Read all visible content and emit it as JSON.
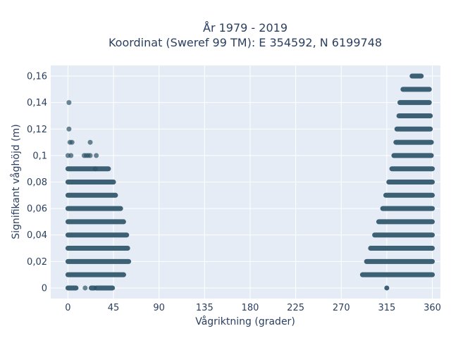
{
  "chart_data": {
    "type": "scatter",
    "title_lines": [
      "År 1979 - 2019",
      "Koordinat (Sweref 99 TM): E 354592, N 6199748"
    ],
    "xlabel": "Vågriktning (grader)",
    "ylabel": "Signifikant våghöjd (m)",
    "xlim": [
      -17,
      368
    ],
    "ylim": [
      -0.008,
      0.168
    ],
    "x_ticks": [
      0,
      45,
      90,
      135,
      180,
      225,
      270,
      315,
      360
    ],
    "x_tick_labels": [
      "0",
      "45",
      "90",
      "135",
      "180",
      "225",
      "270",
      "315",
      "360"
    ],
    "y_ticks": [
      0,
      0.02,
      0.04,
      0.06,
      0.08,
      0.1,
      0.12,
      0.14,
      0.16
    ],
    "y_tick_labels": [
      "0",
      "0,02",
      "0,04",
      "0,06",
      "0,08",
      "0,1",
      "0,12",
      "0,14",
      "0,16"
    ],
    "grid": true,
    "colors": {
      "plot_background": "#e5ecf6",
      "grid": "#ffffff",
      "marker": "#2e5468",
      "text": "#2a3f5f"
    },
    "marker_opacity": 0.7,
    "bands": [
      {
        "y": 0.0,
        "x_ranges": [
          [
            0,
            8
          ],
          [
            23,
            26
          ],
          [
            28,
            44
          ]
        ]
      },
      {
        "y": 0.01,
        "x_ranges": [
          [
            0,
            55
          ]
        ]
      },
      {
        "y": 0.02,
        "x_ranges": [
          [
            0,
            60
          ]
        ]
      },
      {
        "y": 0.03,
        "x_ranges": [
          [
            0,
            59
          ]
        ]
      },
      {
        "y": 0.04,
        "x_ranges": [
          [
            0,
            58
          ]
        ]
      },
      {
        "y": 0.05,
        "x_ranges": [
          [
            0,
            55
          ]
        ]
      },
      {
        "y": 0.06,
        "x_ranges": [
          [
            0,
            52
          ]
        ]
      },
      {
        "y": 0.07,
        "x_ranges": [
          [
            0,
            47
          ]
        ]
      },
      {
        "y": 0.08,
        "x_ranges": [
          [
            0,
            45
          ]
        ]
      },
      {
        "y": 0.09,
        "x_ranges": [
          [
            0,
            40
          ]
        ]
      },
      {
        "y": 0.0,
        "x_ranges": [
          [
            315,
            315
          ]
        ]
      },
      {
        "y": 0.01,
        "x_ranges": [
          [
            291,
            360
          ]
        ]
      },
      {
        "y": 0.02,
        "x_ranges": [
          [
            295,
            360
          ]
        ]
      },
      {
        "y": 0.03,
        "x_ranges": [
          [
            299,
            360
          ]
        ]
      },
      {
        "y": 0.04,
        "x_ranges": [
          [
            303,
            360
          ]
        ]
      },
      {
        "y": 0.05,
        "x_ranges": [
          [
            307,
            360
          ]
        ]
      },
      {
        "y": 0.06,
        "x_ranges": [
          [
            311,
            360
          ]
        ]
      },
      {
        "y": 0.07,
        "x_ranges": [
          [
            314,
            360
          ]
        ]
      },
      {
        "y": 0.08,
        "x_ranges": [
          [
            317,
            360
          ]
        ]
      },
      {
        "y": 0.09,
        "x_ranges": [
          [
            320,
            360
          ]
        ]
      },
      {
        "y": 0.1,
        "x_ranges": [
          [
            322,
            359
          ]
        ]
      },
      {
        "y": 0.11,
        "x_ranges": [
          [
            324,
            359
          ]
        ]
      },
      {
        "y": 0.12,
        "x_ranges": [
          [
            325,
            358
          ]
        ]
      },
      {
        "y": 0.13,
        "x_ranges": [
          [
            327,
            358
          ]
        ]
      },
      {
        "y": 0.14,
        "x_ranges": [
          [
            328,
            357
          ]
        ]
      },
      {
        "y": 0.15,
        "x_ranges": [
          [
            331,
            357
          ]
        ]
      },
      {
        "y": 0.16,
        "x_ranges": [
          [
            340,
            349
          ]
        ]
      }
    ],
    "points": [
      {
        "x": 1,
        "y": 0.14
      },
      {
        "x": 1,
        "y": 0.12
      },
      {
        "x": 2,
        "y": 0.11
      },
      {
        "x": 4,
        "y": 0.11
      },
      {
        "x": 22,
        "y": 0.11
      },
      {
        "x": 0,
        "y": 0.1
      },
      {
        "x": 3,
        "y": 0.1
      },
      {
        "x": 16,
        "y": 0.1
      },
      {
        "x": 18,
        "y": 0.1
      },
      {
        "x": 20,
        "y": 0.1
      },
      {
        "x": 22,
        "y": 0.1
      },
      {
        "x": 28,
        "y": 0.1
      },
      {
        "x": 27,
        "y": 0.09
      },
      {
        "x": 17,
        "y": 0.0
      }
    ]
  }
}
